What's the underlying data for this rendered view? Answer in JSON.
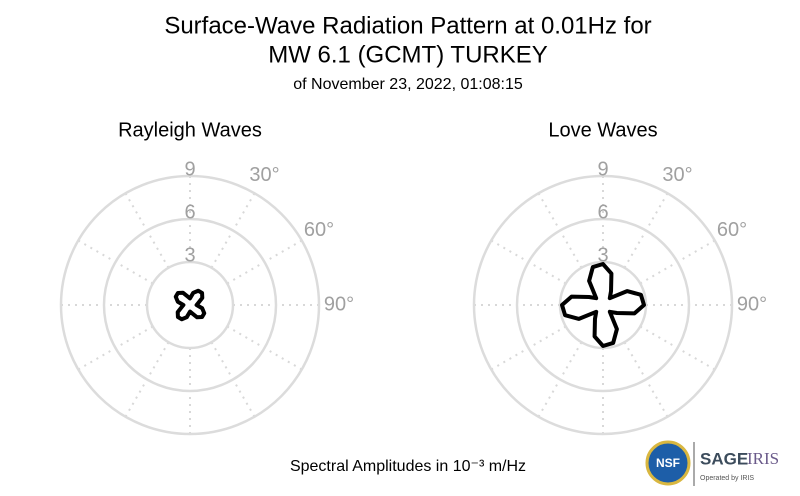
{
  "header": {
    "title_lines": [
      "Surface-Wave Radiation Pattern at 0.01Hz for",
      "MW 6.1 (GCMT) TURKEY"
    ],
    "subtitle": "of November 23, 2022, 01:08:15"
  },
  "chart_data": [
    {
      "type": "polar",
      "title": "Rayleigh Waves",
      "theta": [
        0,
        15,
        30,
        45,
        60,
        75,
        90,
        105,
        120,
        135,
        150,
        165,
        180,
        195,
        210,
        225,
        240,
        255,
        270,
        285,
        300,
        315,
        330,
        345
      ],
      "r": [
        0.46,
        0.88,
        1.15,
        1.19,
        0.99,
        0.61,
        0.46,
        0.88,
        1.15,
        1.19,
        0.99,
        0.61,
        0.46,
        0.88,
        1.15,
        1.19,
        0.99,
        0.61,
        0.46,
        0.88,
        1.15,
        1.19,
        0.99,
        0.61
      ],
      "rlim": [
        0,
        9
      ],
      "rticks": [
        3,
        6,
        9
      ],
      "thetaticks": [
        {
          "value": 30,
          "label": "30°"
        },
        {
          "value": 60,
          "label": "60°"
        },
        {
          "value": 90,
          "label": "90°"
        }
      ],
      "color": "#000000",
      "grid": true
    },
    {
      "type": "polar",
      "title": "Love Waves",
      "theta": [
        0,
        15,
        30,
        45,
        60,
        75,
        90,
        105,
        120,
        135,
        150,
        165,
        180,
        195,
        210,
        225,
        240,
        255,
        270,
        285,
        300,
        315,
        330,
        345
      ],
      "r": [
        2.86,
        2.27,
        1.12,
        0.67,
        1.94,
        2.74,
        2.86,
        2.27,
        1.12,
        0.67,
        1.94,
        2.74,
        2.86,
        2.27,
        1.12,
        0.67,
        1.94,
        2.74,
        2.86,
        2.27,
        1.12,
        0.67,
        1.94,
        2.74
      ],
      "rlim": [
        0,
        9
      ],
      "rticks": [
        3,
        6,
        9
      ],
      "thetaticks": [
        {
          "value": 30,
          "label": "30°"
        },
        {
          "value": 60,
          "label": "60°"
        },
        {
          "value": 90,
          "label": "90°"
        }
      ],
      "color": "#000000",
      "grid": true
    }
  ],
  "footer": {
    "caption": "Spectral Amplitudes in 10⁻³ m/Hz",
    "logos": {
      "nsf": "NSF",
      "sage": "SAGE",
      "iris": "IRIS",
      "operated": "Operated by IRIS"
    }
  }
}
